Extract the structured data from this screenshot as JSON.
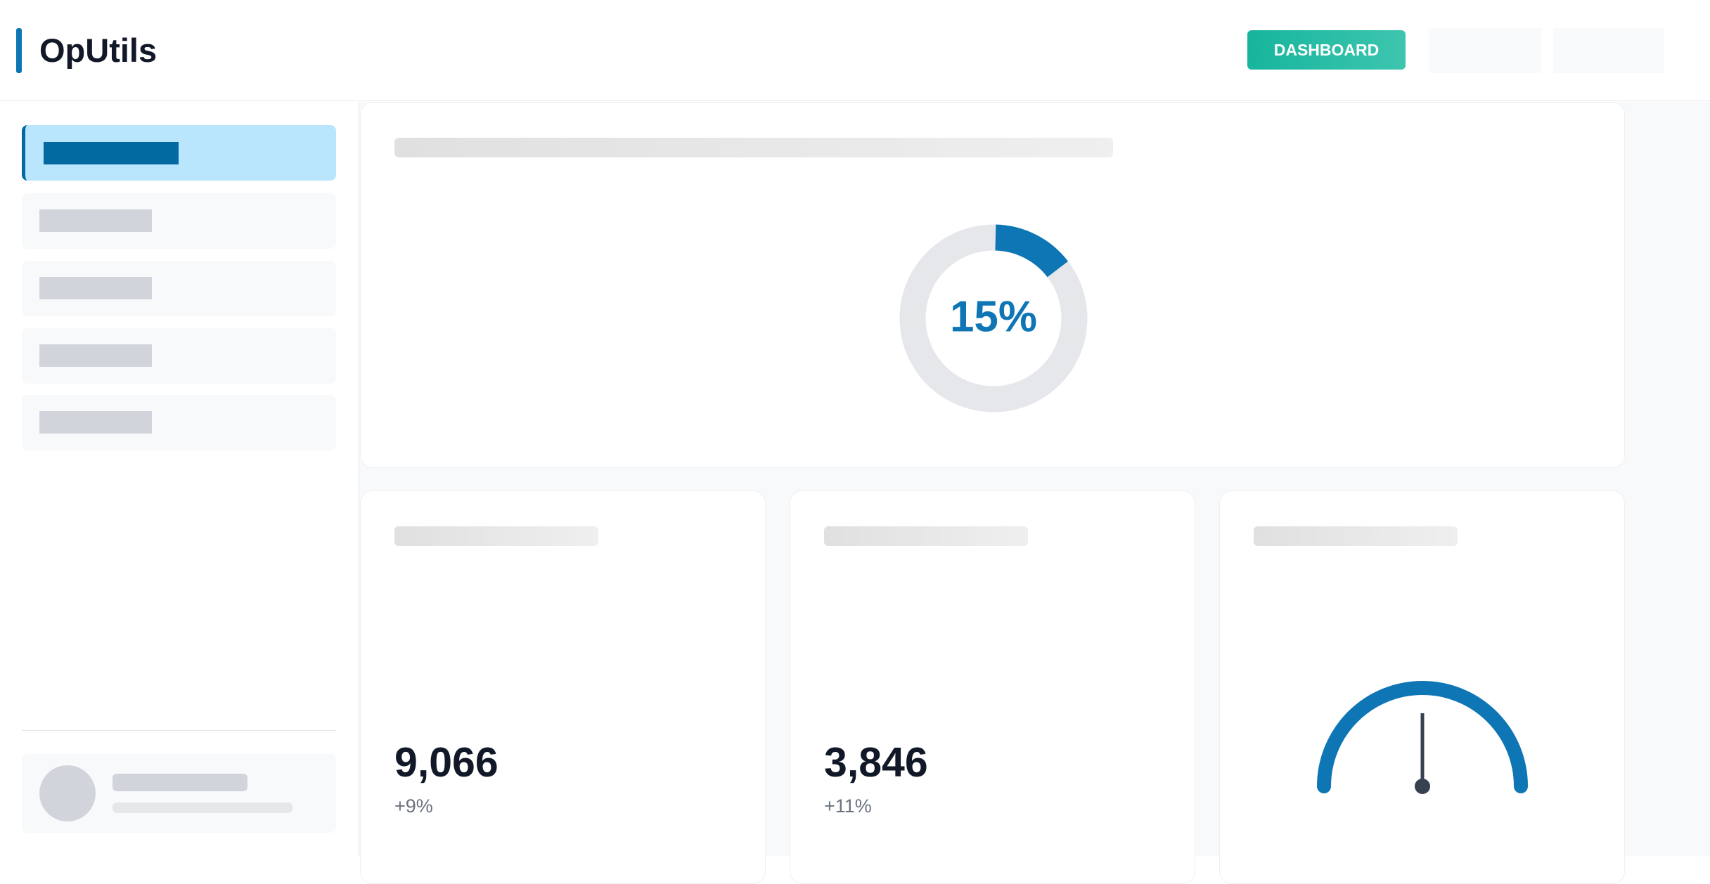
{
  "header": {
    "title": "OpUtils",
    "button": "DASHBOARD"
  },
  "donut": {
    "value": 15,
    "value_label": "15%"
  },
  "stats": [
    {
      "value": "9,066",
      "change": "+9%"
    },
    {
      "value": "3,846",
      "change": "+11%"
    }
  ]
}
